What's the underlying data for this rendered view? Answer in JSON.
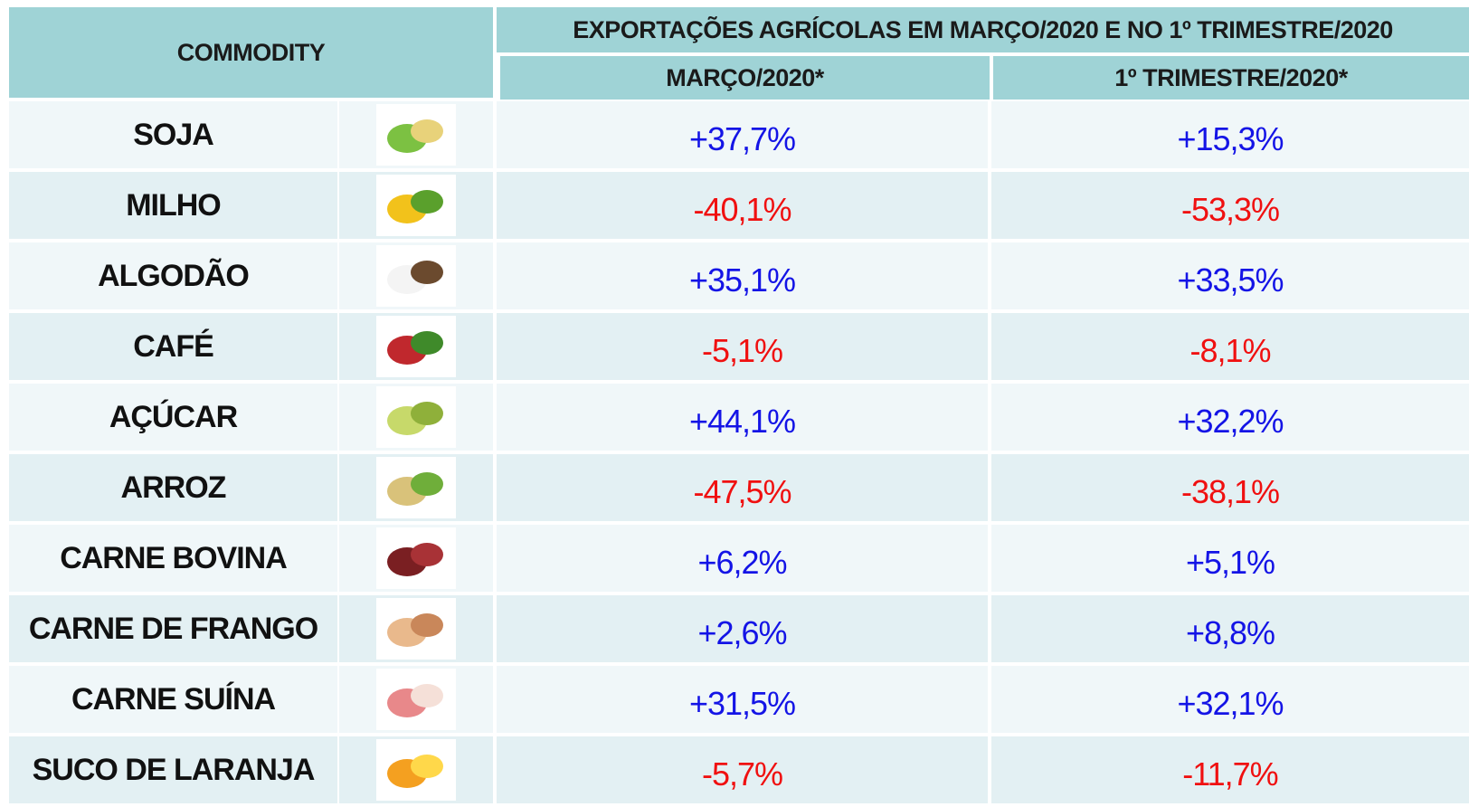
{
  "header": {
    "commodity": "COMMODITY",
    "group_title": "EXPORTAÇÕES AGRÍCOLAS EM MARÇO/2020 E NO 1º TRIMESTRE/2020",
    "columns": [
      "MARÇO/2020*",
      "1º TRIMESTRE/2020*"
    ]
  },
  "table": {
    "rows": [
      [
        "SOJA",
        "+37,7%",
        "+15,3%"
      ],
      [
        "MILHO",
        "-40,1%",
        "-53,3%"
      ],
      [
        "ALGODÃO",
        "+35,1%",
        "+33,5%"
      ],
      [
        "CAFÉ",
        "-5,1%",
        "-8,1%"
      ],
      [
        "AÇÚCAR",
        "+44,1%",
        "+32,2%"
      ],
      [
        "ARROZ",
        "-47,5%",
        "-38,1%"
      ],
      [
        "CARNE BOVINA",
        "+6,2%",
        "+5,1%"
      ],
      [
        "CARNE DE FRANGO",
        "+2,6%",
        "+8,8%"
      ],
      [
        "CARNE SUÍNA",
        "+31,5%",
        "+32,1%"
      ],
      [
        "SUCO DE LARANJA",
        "-5,7%",
        "-11,7%"
      ]
    ]
  }
}
